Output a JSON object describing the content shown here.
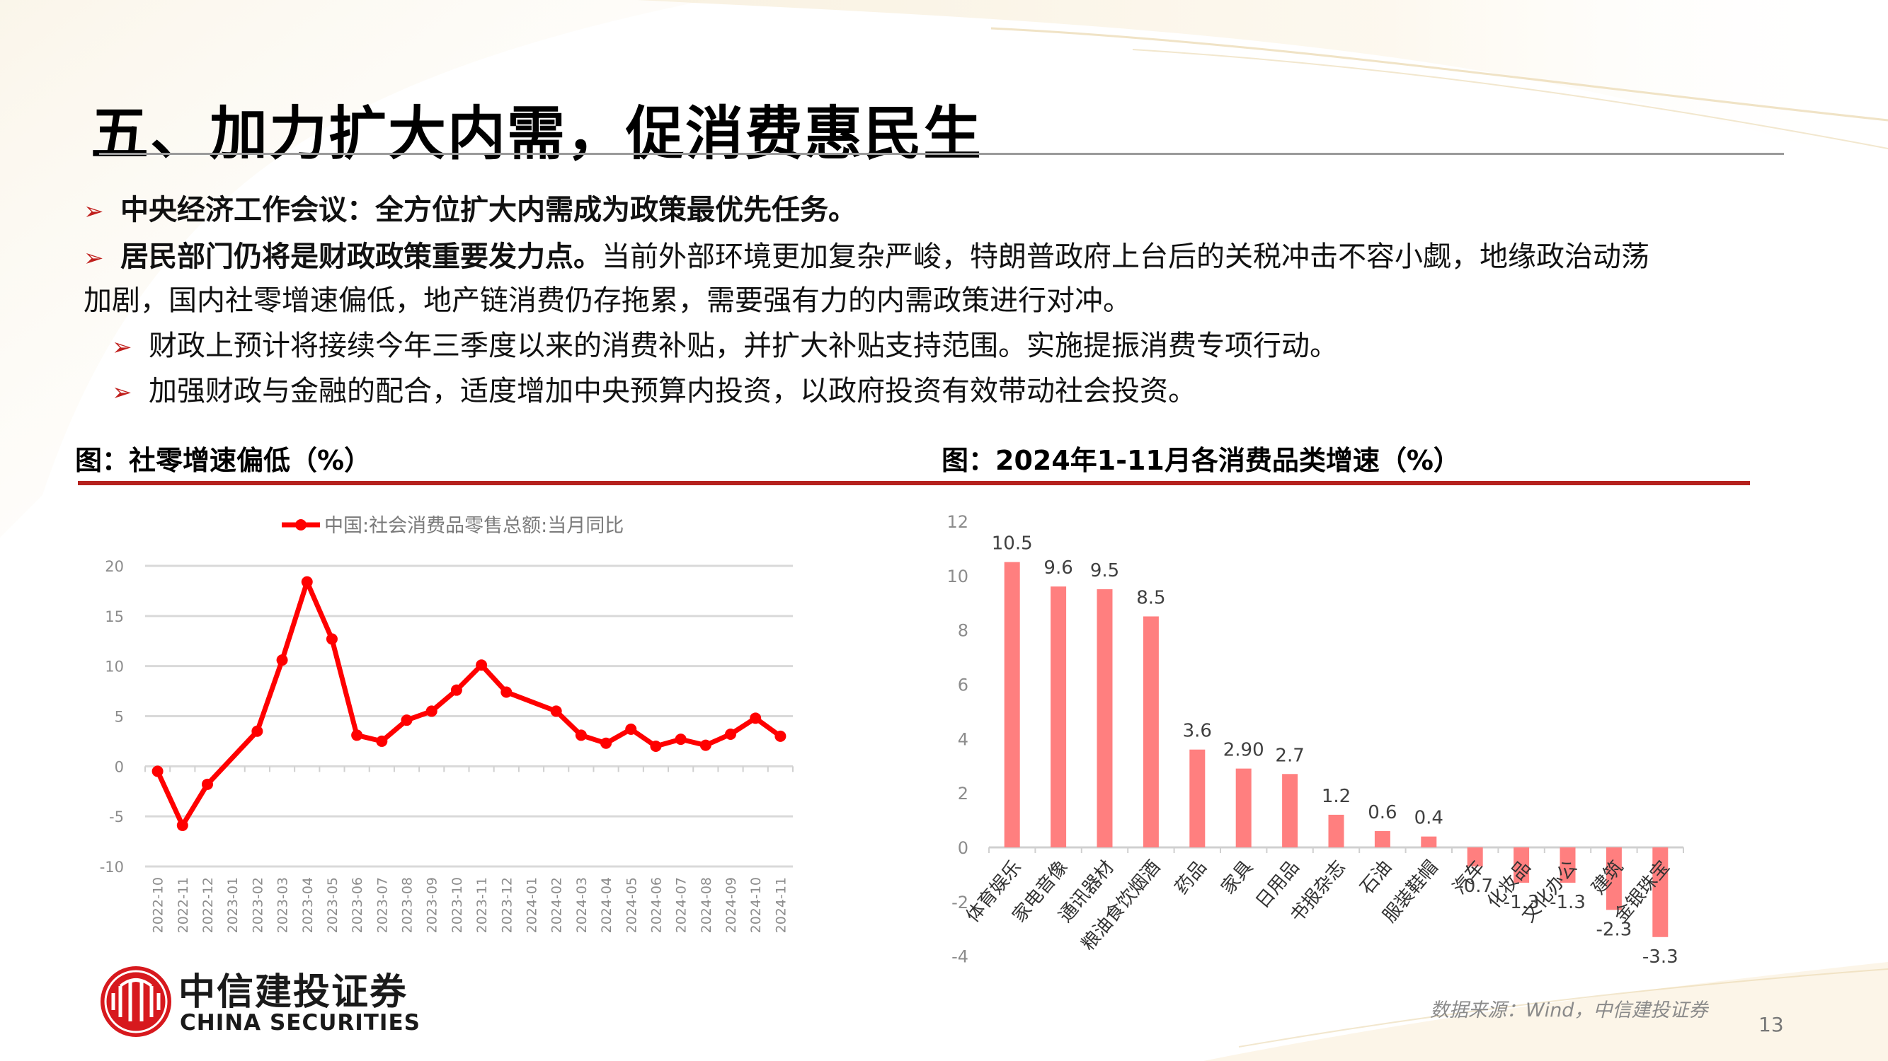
{
  "slide": {
    "title": "五、加力扩大内需，促消费惠民生",
    "page_number": "13",
    "source": "数据来源：Wind，中信建投证券",
    "accent_color": "#b5211d"
  },
  "bullets": [
    {
      "level": 1,
      "bold": "中央经济工作会议：全方位扩大内需成为政策最优先任务。",
      "text": ""
    },
    {
      "level": 1,
      "bold": "居民部门仍将是财政政策重要发力点。",
      "text": "当前外部环境更加复杂严峻，特朗普政府上台后的关税冲击不容小觑，地缘政治动荡",
      "continuation": "加剧，国内社零增速偏低，地产链消费仍存拖累，需要强有力的内需政策进行对冲。"
    },
    {
      "level": 2,
      "bold": "",
      "text": "财政上预计将接续今年三季度以来的消费补贴，并扩大补贴支持范围。实施提振消费专项行动。"
    },
    {
      "level": 2,
      "bold": "",
      "text": "加强财政与金融的配合，适度增加中央预算内投资，以政府投资有效带动社会投资。"
    }
  ],
  "bullet_icon": "arrowhead-icon",
  "logo": {
    "cn": "中信建投证券",
    "en": "CHINA SECURITIES"
  },
  "chart_data": [
    {
      "type": "line",
      "title": "图：社零增速偏低（%）",
      "legend": [
        "中国:社会消费品零售总额:当月同比"
      ],
      "legend_position": "top",
      "color": "#ff0000",
      "grid": true,
      "ylim": [
        -10,
        20
      ],
      "yticks": [
        20,
        15,
        10,
        5,
        0,
        -5,
        -10
      ],
      "x": [
        "2022-10",
        "2022-11",
        "2022-12",
        "2023-01",
        "2023-02",
        "2023-03",
        "2023-04",
        "2023-05",
        "2023-06",
        "2023-07",
        "2023-08",
        "2023-09",
        "2023-10",
        "2023-11",
        "2023-12",
        "2024-01",
        "2024-02",
        "2024-03",
        "2024-04",
        "2024-05",
        "2024-06",
        "2024-07",
        "2024-08",
        "2024-09",
        "2024-10",
        "2024-11"
      ],
      "series": [
        {
          "name": "中国:社会消费品零售总额:当月同比",
          "values": [
            -0.5,
            -5.9,
            -1.8,
            null,
            3.5,
            10.6,
            18.4,
            12.7,
            3.1,
            2.5,
            4.6,
            5.5,
            7.6,
            10.1,
            7.4,
            null,
            5.5,
            3.1,
            2.3,
            3.7,
            2.0,
            2.7,
            2.1,
            3.2,
            4.8,
            3.0
          ]
        }
      ],
      "xlabel": "",
      "ylabel": ""
    },
    {
      "type": "bar",
      "title": "图：2024年1-11月各消费品类增速（%）",
      "color": "#ff7f7f",
      "grid": false,
      "ylim": [
        -4,
        12
      ],
      "yticks": [
        12,
        10,
        8,
        6,
        4,
        2,
        0,
        -2,
        -4
      ],
      "categories": [
        "体育娱乐",
        "家电音像",
        "通讯器材",
        "粮油食饮烟酒",
        "药品",
        "家具",
        "日用品",
        "书报杂志",
        "石油",
        "服装鞋帽",
        "汽车",
        "化妆品",
        "文化办公",
        "建筑",
        "金银珠宝"
      ],
      "values": [
        10.5,
        9.6,
        9.5,
        8.5,
        3.6,
        2.9,
        2.7,
        1.2,
        0.6,
        0.4,
        -0.7,
        -1.3,
        -1.3,
        -2.3,
        -3.3
      ],
      "value_labels": [
        "10.5",
        "9.6",
        "9.5",
        "8.5",
        "3.6",
        "2.90",
        "2.7",
        "1.2",
        "0.6",
        "0.4",
        "-0.7",
        "-1.3",
        "-1.3",
        "-2.3",
        "-3.3"
      ],
      "xlabel": "",
      "ylabel": ""
    }
  ]
}
